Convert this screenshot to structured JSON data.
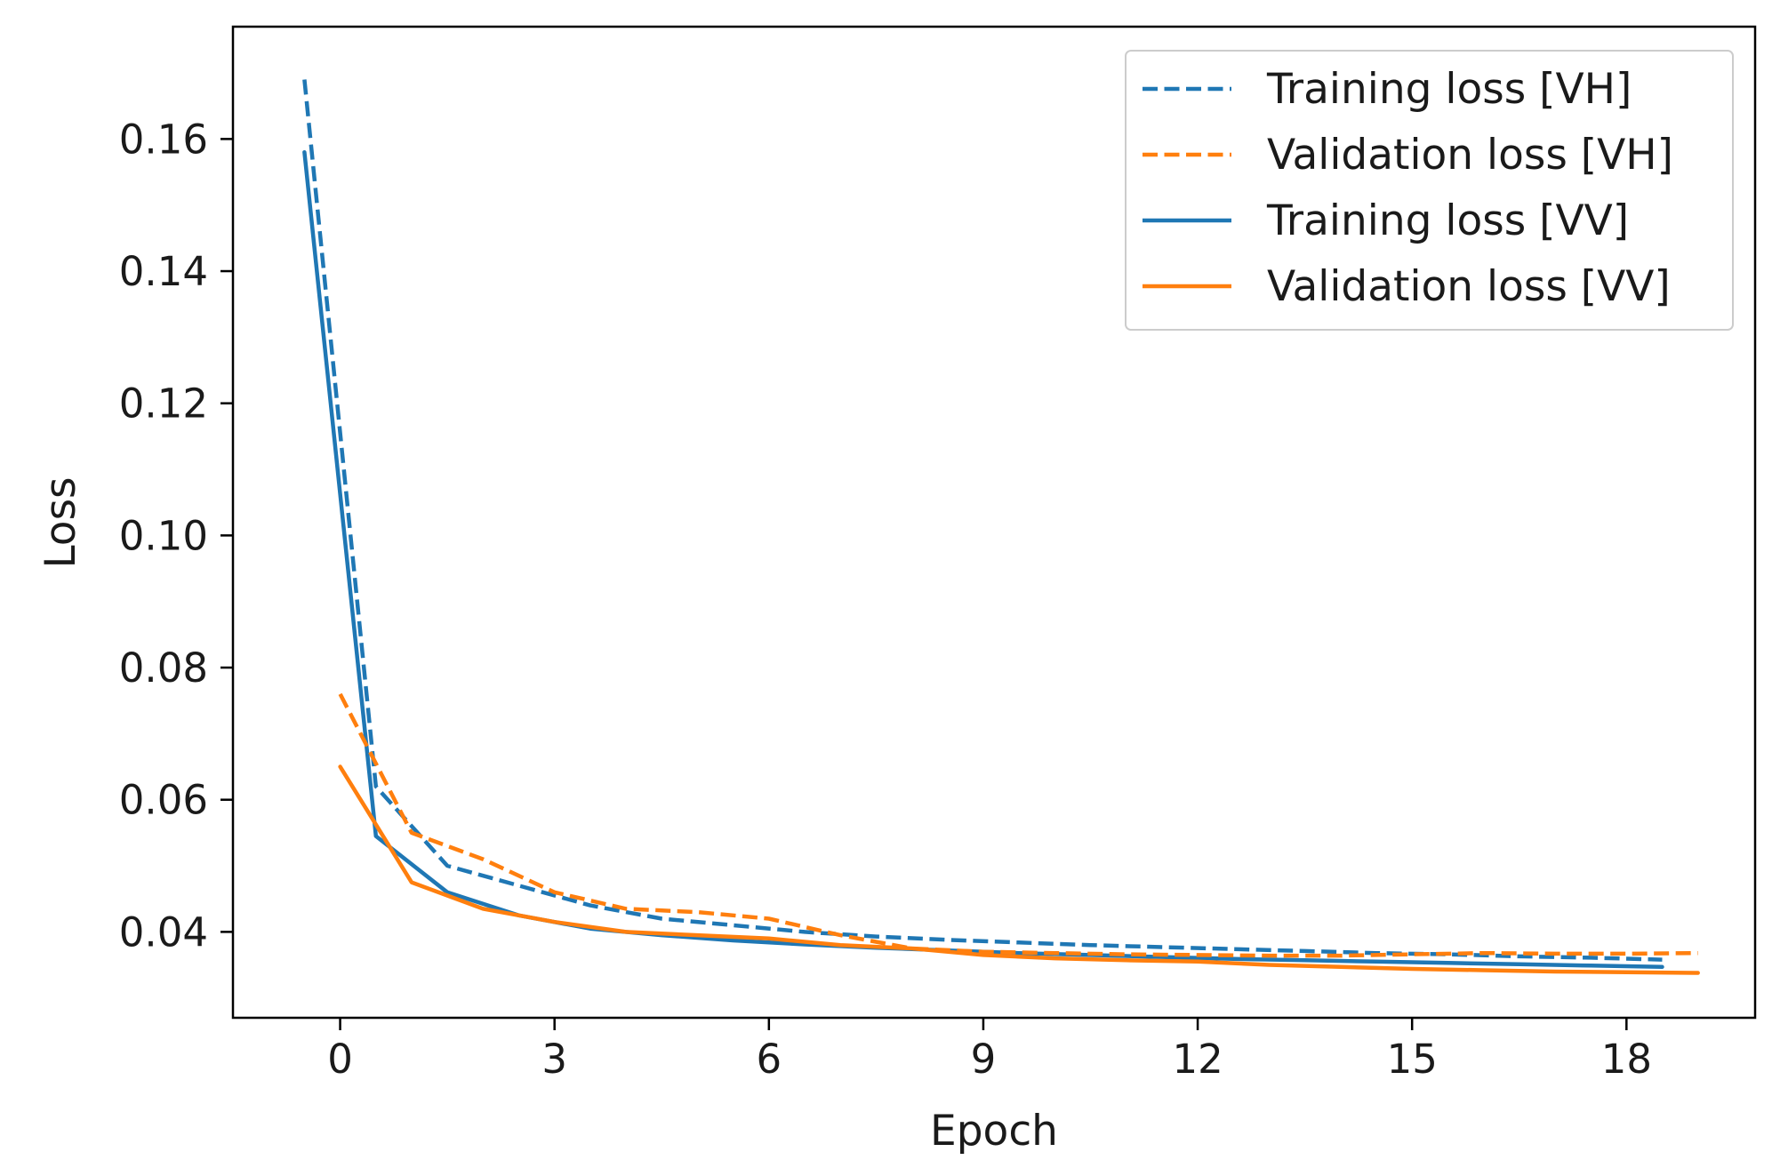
{
  "chart_data": {
    "type": "line",
    "title": "",
    "xlabel": "Epoch",
    "ylabel": "Loss",
    "xlim": [
      -1.5,
      19.8
    ],
    "ylim": [
      0.027,
      0.177
    ],
    "xticks": [
      0,
      3,
      6,
      9,
      12,
      15,
      18
    ],
    "yticks": [
      0.04,
      0.06,
      0.08,
      0.1,
      0.12,
      0.14,
      0.16
    ],
    "xtick_labels": [
      "0",
      "3",
      "6",
      "9",
      "12",
      "15",
      "18"
    ],
    "ytick_labels": [
      "0.04",
      "0.06",
      "0.08",
      "0.10",
      "0.12",
      "0.14",
      "0.16"
    ],
    "grid": false,
    "legend_position": "top-right",
    "series": [
      {
        "name": "Training loss [VH]",
        "color": "#1f77b4",
        "dash": "dashed",
        "x": [
          -0.5,
          0.5,
          1.5,
          2.5,
          3.5,
          4.5,
          5.5,
          6.5,
          7.5,
          8.5,
          9.5,
          10.5,
          11.5,
          12.5,
          13.5,
          14.5,
          15.5,
          16.5,
          17.5,
          18.5
        ],
        "y": [
          0.169,
          0.062,
          0.05,
          0.047,
          0.044,
          0.042,
          0.041,
          0.04,
          0.0393,
          0.0388,
          0.0384,
          0.038,
          0.0377,
          0.0374,
          0.0371,
          0.0368,
          0.0366,
          0.0363,
          0.0361,
          0.0358
        ]
      },
      {
        "name": "Validation loss [VH]",
        "color": "#ff7f0e",
        "dash": "dashed",
        "x": [
          0,
          1,
          2,
          3,
          4,
          5,
          6,
          7,
          8,
          9,
          10,
          11,
          12,
          13,
          14,
          15,
          16,
          17,
          18,
          19
        ],
        "y": [
          0.076,
          0.055,
          0.051,
          0.046,
          0.0435,
          0.043,
          0.042,
          0.0395,
          0.0375,
          0.037,
          0.0368,
          0.0366,
          0.0365,
          0.0364,
          0.0364,
          0.0366,
          0.0368,
          0.0367,
          0.0367,
          0.0368
        ]
      },
      {
        "name": "Training loss [VV]",
        "color": "#1f77b4",
        "dash": "solid",
        "x": [
          -0.5,
          0.5,
          1.5,
          2.5,
          3.5,
          4.5,
          5.5,
          6.5,
          7.5,
          8.5,
          9.5,
          10.5,
          11.5,
          12.5,
          13.5,
          14.5,
          15.5,
          16.5,
          17.5,
          18.5
        ],
        "y": [
          0.158,
          0.0545,
          0.046,
          0.0425,
          0.0405,
          0.0395,
          0.0387,
          0.0381,
          0.0376,
          0.0372,
          0.0368,
          0.0365,
          0.0362,
          0.0359,
          0.0357,
          0.0355,
          0.0353,
          0.0351,
          0.0349,
          0.0347
        ]
      },
      {
        "name": "Validation loss [VV]",
        "color": "#ff7f0e",
        "dash": "solid",
        "x": [
          0,
          1,
          2,
          3,
          4,
          5,
          6,
          7,
          8,
          9,
          10,
          11,
          12,
          13,
          14,
          15,
          16,
          17,
          18,
          19
        ],
        "y": [
          0.065,
          0.0475,
          0.0435,
          0.0415,
          0.04,
          0.0395,
          0.039,
          0.038,
          0.0375,
          0.0365,
          0.036,
          0.0357,
          0.0355,
          0.035,
          0.0347,
          0.0344,
          0.0342,
          0.034,
          0.0339,
          0.0338
        ]
      }
    ]
  }
}
